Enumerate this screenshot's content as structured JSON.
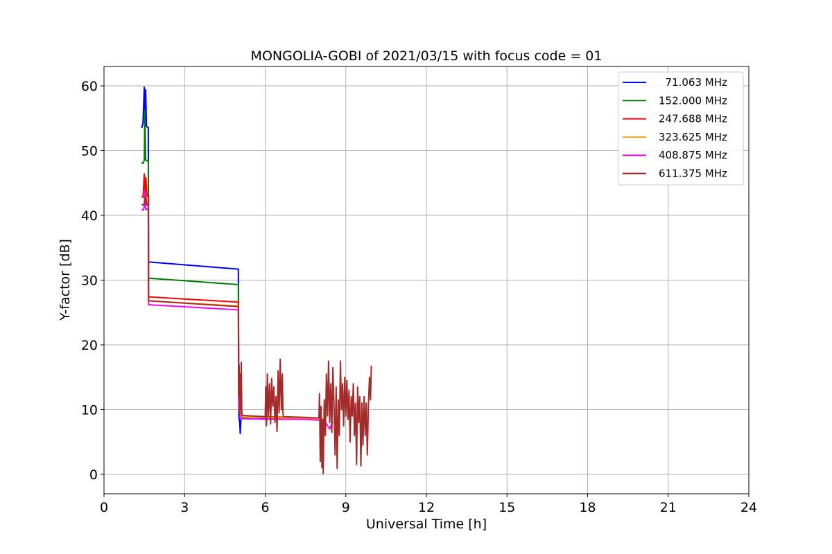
{
  "chart_data": {
    "type": "line",
    "title": "MONGOLIA-GOBI of 2021/03/15 with focus code = 01",
    "xlabel": "Universal Time [h]",
    "ylabel": "Y-factor [dB]",
    "xlim": [
      0,
      24
    ],
    "ylim": [
      -3,
      63
    ],
    "xticks": [
      0,
      3,
      6,
      9,
      12,
      15,
      18,
      21,
      24
    ],
    "yticks": [
      0,
      10,
      20,
      30,
      40,
      50,
      60
    ],
    "grid": true,
    "legend_position": "top-right",
    "series": [
      {
        "name": "  71.063 MHz",
        "color": "#0000ff",
        "points": [
          [
            1.4,
            53.5
          ],
          [
            1.45,
            54.2
          ],
          [
            1.5,
            59.8
          ],
          [
            1.52,
            53.5
          ],
          [
            1.55,
            59.4
          ],
          [
            1.58,
            53.8
          ],
          [
            1.62,
            53.6
          ],
          [
            1.65,
            53.6
          ],
          [
            1.66,
            32.8
          ],
          [
            5.0,
            31.7
          ],
          [
            5.02,
            9.0
          ],
          [
            5.05,
            8.0
          ],
          [
            5.07,
            6.3
          ],
          [
            5.1,
            8.8
          ],
          [
            5.3,
            8.6
          ],
          [
            6.5,
            8.6
          ]
        ]
      },
      {
        "name": "152.000 MHz",
        "color": "#008000",
        "points": [
          [
            1.4,
            48.2
          ],
          [
            1.45,
            48.0
          ],
          [
            1.5,
            48.5
          ],
          [
            1.52,
            56.2
          ],
          [
            1.55,
            48.6
          ],
          [
            1.6,
            48.4
          ],
          [
            1.65,
            48.5
          ],
          [
            1.66,
            30.3
          ],
          [
            5.0,
            29.3
          ],
          [
            5.02,
            10.0
          ],
          [
            5.1,
            8.7
          ],
          [
            6.0,
            8.5
          ],
          [
            6.6,
            8.6
          ]
        ]
      },
      {
        "name": "247.688 MHz",
        "color": "#ff0000",
        "points": [
          [
            1.4,
            42.9
          ],
          [
            1.45,
            42.8
          ],
          [
            1.5,
            46.4
          ],
          [
            1.53,
            42.9
          ],
          [
            1.56,
            45.8
          ],
          [
            1.6,
            43.0
          ],
          [
            1.65,
            42.9
          ],
          [
            1.66,
            27.4
          ],
          [
            5.0,
            26.6
          ],
          [
            5.02,
            11.0
          ],
          [
            5.1,
            9.0
          ],
          [
            6.0,
            8.9
          ],
          [
            7.0,
            8.8
          ],
          [
            8.0,
            8.7
          ]
        ]
      },
      {
        "name": "323.625 MHz",
        "color": "#ffa500",
        "points": [
          [
            1.4,
            41.6
          ],
          [
            1.5,
            41.8
          ],
          [
            1.55,
            43.2
          ],
          [
            1.6,
            41.6
          ],
          [
            1.65,
            41.7
          ],
          [
            1.66,
            26.8
          ],
          [
            5.0,
            26.0
          ],
          [
            5.02,
            10.5
          ],
          [
            5.1,
            8.9
          ],
          [
            6.0,
            8.8
          ],
          [
            7.0,
            8.7
          ],
          [
            8.0,
            8.6
          ]
        ]
      },
      {
        "name": "408.875 MHz",
        "color": "#ff00ff",
        "points": [
          [
            1.4,
            40.9
          ],
          [
            1.45,
            40.8
          ],
          [
            1.5,
            41.3
          ],
          [
            1.52,
            43.8
          ],
          [
            1.55,
            40.9
          ],
          [
            1.6,
            41.0
          ],
          [
            1.65,
            40.9
          ],
          [
            1.66,
            26.2
          ],
          [
            5.0,
            25.4
          ],
          [
            5.02,
            10.2
          ],
          [
            5.1,
            8.6
          ],
          [
            6.6,
            8.5
          ],
          [
            7.5,
            8.5
          ],
          [
            8.2,
            8.3
          ],
          [
            8.4,
            7.0
          ],
          [
            8.5,
            8.0
          ]
        ]
      },
      {
        "name": "611.375 MHz",
        "color": "#a52a2a",
        "points": [
          [
            1.4,
            41.6
          ],
          [
            1.5,
            41.7
          ],
          [
            1.55,
            43.0
          ],
          [
            1.6,
            41.6
          ],
          [
            1.65,
            41.7
          ],
          [
            1.66,
            26.8
          ],
          [
            5.0,
            25.9
          ],
          [
            5.01,
            12.0
          ],
          [
            5.03,
            16.9
          ],
          [
            5.05,
            9.2
          ],
          [
            5.07,
            15.5
          ],
          [
            5.09,
            10.0
          ],
          [
            5.11,
            17.3
          ],
          [
            5.13,
            9.5
          ],
          [
            5.15,
            9.1
          ],
          [
            6.0,
            8.9
          ],
          [
            6.02,
            13.5
          ],
          [
            6.05,
            7.5
          ],
          [
            6.08,
            15.5
          ],
          [
            6.12,
            9.0
          ],
          [
            6.16,
            14.0
          ],
          [
            6.2,
            7.8
          ],
          [
            6.24,
            14.8
          ],
          [
            6.28,
            10.5
          ],
          [
            6.32,
            13.5
          ],
          [
            6.36,
            8.0
          ],
          [
            6.4,
            12.0
          ],
          [
            6.44,
            6.6
          ],
          [
            6.48,
            16.0
          ],
          [
            6.52,
            9.5
          ],
          [
            6.56,
            17.8
          ],
          [
            6.6,
            10.0
          ],
          [
            6.64,
            15.5
          ],
          [
            6.66,
            9.5
          ],
          [
            6.68,
            8.9
          ],
          [
            7.5,
            8.8
          ],
          [
            8.0,
            8.7
          ],
          [
            8.02,
            12.5
          ],
          [
            8.05,
            2.0
          ],
          [
            8.08,
            10.5
          ],
          [
            8.11,
            1.0
          ],
          [
            8.14,
            8.5
          ],
          [
            8.16,
            0.1
          ],
          [
            8.2,
            11.5
          ],
          [
            8.24,
            6.0
          ],
          [
            8.28,
            15.5
          ],
          [
            8.32,
            9.0
          ],
          [
            8.36,
            17.5
          ],
          [
            8.4,
            8.0
          ],
          [
            8.44,
            14.0
          ],
          [
            8.48,
            6.5
          ],
          [
            8.52,
            16.5
          ],
          [
            8.56,
            11.0
          ],
          [
            8.6,
            3.0
          ],
          [
            8.64,
            13.5
          ],
          [
            8.68,
            0.9
          ],
          [
            8.72,
            11.5
          ],
          [
            8.76,
            6.0
          ],
          [
            8.8,
            17.5
          ],
          [
            8.84,
            10.0
          ],
          [
            8.88,
            14.0
          ],
          [
            8.92,
            7.5
          ],
          [
            8.96,
            15.0
          ],
          [
            9.0,
            9.0
          ],
          [
            9.04,
            14.5
          ],
          [
            9.08,
            8.5
          ],
          [
            9.12,
            13.0
          ],
          [
            9.16,
            5.0
          ],
          [
            9.2,
            12.0
          ],
          [
            9.24,
            9.0
          ],
          [
            9.28,
            14.0
          ],
          [
            9.32,
            6.0
          ],
          [
            9.36,
            11.0
          ],
          [
            9.4,
            1.5
          ],
          [
            9.44,
            13.5
          ],
          [
            9.48,
            8.0
          ],
          [
            9.52,
            12.0
          ],
          [
            9.56,
            1.3
          ],
          [
            9.6,
            11.0
          ],
          [
            9.64,
            4.5
          ],
          [
            9.68,
            12.0
          ],
          [
            9.72,
            6.0
          ],
          [
            9.76,
            11.0
          ],
          [
            9.8,
            3.0
          ],
          [
            9.84,
            10.5
          ],
          [
            9.88,
            15.0
          ],
          [
            9.92,
            11.5
          ],
          [
            9.95,
            16.8
          ]
        ]
      }
    ]
  }
}
